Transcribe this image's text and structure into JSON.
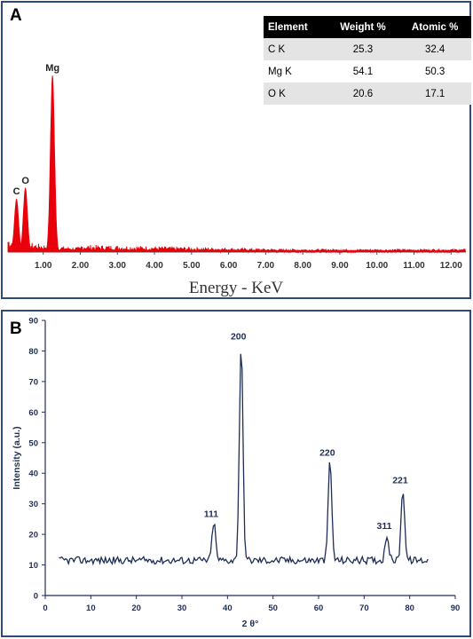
{
  "panel_a": {
    "letter": "A",
    "table": {
      "headers": [
        "Element",
        "Weight %",
        "Atomic %"
      ],
      "rows": [
        [
          "C K",
          "25.3",
          "32.4"
        ],
        [
          "Mg K",
          "54.1",
          "50.3"
        ],
        [
          "O K",
          "20.6",
          "17.1"
        ]
      ]
    }
  },
  "panel_b": {
    "letter": "B"
  },
  "chart_data": [
    {
      "type": "bar",
      "title": "",
      "xlabel": "Energy - KeV",
      "ylabel": "",
      "xlim": [
        0.05,
        12.4
      ],
      "x_ticks": [
        "1.00",
        "2.00",
        "3.00",
        "4.00",
        "5.00",
        "6.00",
        "7.00",
        "8.00",
        "9.00",
        "10.00",
        "11.00",
        "12.00"
      ],
      "x_tick_values": [
        1,
        2,
        3,
        4,
        5,
        6,
        7,
        8,
        9,
        10,
        11,
        12
      ],
      "series": [
        {
          "color": "#e8000b",
          "peaks": [
            {
              "label": "C",
              "x": 0.28,
              "y": 48
            },
            {
              "label": "O",
              "x": 0.52,
              "y": 58
            },
            {
              "label": "Mg",
              "x": 1.25,
              "y": 160
            }
          ]
        }
      ],
      "y_axis_visible": false,
      "grid": false
    },
    {
      "type": "line",
      "title": "",
      "xlabel": "2 θ°",
      "ylabel": "Intensity (a.u.)",
      "xlim": [
        0,
        90
      ],
      "ylim": [
        0,
        90
      ],
      "x_ticks": [
        0,
        10,
        20,
        30,
        40,
        50,
        60,
        70,
        80,
        90
      ],
      "y_ticks": [
        0,
        10,
        20,
        30,
        40,
        50,
        60,
        70,
        80,
        90
      ],
      "series": [
        {
          "color": "#1f2e57",
          "baseline": 11.5,
          "x_start": 3,
          "x_end": 84,
          "peaks": [
            {
              "label": "111",
              "x": 37,
              "y": 24
            },
            {
              "label": "200",
              "x": 43,
              "y": 82
            },
            {
              "label": "220",
              "x": 62.5,
              "y": 44
            },
            {
              "label": "311",
              "x": 75,
              "y": 20
            },
            {
              "label": "221",
              "x": 78.5,
              "y": 35
            }
          ]
        }
      ],
      "grid": false
    }
  ]
}
